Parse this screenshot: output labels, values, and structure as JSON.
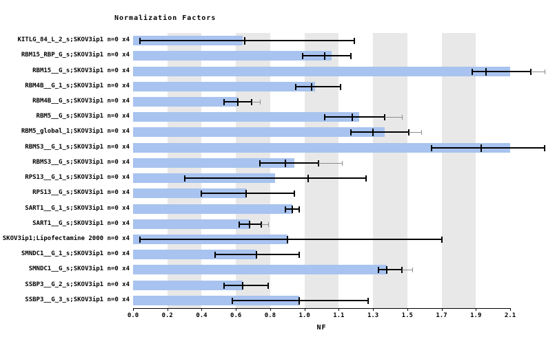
{
  "chart_data": {
    "type": "bar",
    "orientation": "horizontal",
    "title": "Normalization Factors",
    "xlabel": "NF",
    "xticks": [
      0.0,
      0.2,
      0.4,
      0.6,
      0.8,
      1.0,
      1.1,
      1.3,
      1.5,
      1.7,
      1.9,
      2.1
    ],
    "grid": "alternating-vertical-bands",
    "legend": "none",
    "bar_color": "#a8c3ef",
    "band_color": "#e8e8e8",
    "error_color": "#000000",
    "ext_color": "#8c8c8c",
    "rows": [
      {
        "label": "KITLG_84_L_2_s;SKOV3ip1 n=0 x4",
        "value": 0.64,
        "lo": 0.04,
        "hi": 1.19,
        "mid": 0.65
      },
      {
        "label": "RBM15_RBP_G_s;SKOV3ip1 n=0 x4",
        "value": 1.08,
        "lo": 0.99,
        "hi": 1.17,
        "mid": 1.06
      },
      {
        "label": "RBM15__G_s;SKOV3ip1 n=0 x4",
        "value": 2.1,
        "lo": 1.88,
        "hi": 2.22,
        "mid": 1.96,
        "ext_hi": 2.3
      },
      {
        "label": "RBM4B__G_1_s;SKOV3ip1 n=0 x4",
        "value": 1.03,
        "lo": 0.95,
        "hi": 1.11,
        "mid": 1.02
      },
      {
        "label": "RBM4B__G_s;SKOV3ip1 n=0 x4",
        "value": 0.61,
        "lo": 0.53,
        "hi": 0.69,
        "ext_hi": 0.74
      },
      {
        "label": "RBM5__G_s;SKOV3ip1 n=0 x4",
        "value": 1.22,
        "lo": 1.06,
        "hi": 1.37,
        "mid": 1.18,
        "ext_hi": 1.47
      },
      {
        "label": "RBM5_global_1;SKOV3ip1 n=0 x4",
        "value": 1.37,
        "lo": 1.17,
        "hi": 1.51,
        "mid": 1.3,
        "ext_hi": 1.58
      },
      {
        "label": "RBMS3__G_1_s;SKOV3ip1 n=0 x4",
        "value": 2.1,
        "lo": 1.64,
        "hi": 2.3,
        "mid": 1.93
      },
      {
        "label": "RBMS3__G_s;SKOV3ip1 n=0 x4",
        "value": 0.94,
        "lo": 0.74,
        "hi": 1.04,
        "mid": 0.89,
        "ext_hi": 1.12
      },
      {
        "label": "RPS13__G_1_s;SKOV3ip1 n=0 x4",
        "value": 0.83,
        "lo": 0.3,
        "hi": 1.26,
        "mid": 1.01
      },
      {
        "label": "RPS13__G_s;SKOV3ip1 n=0 x4",
        "value": 0.66,
        "lo": 0.4,
        "hi": 0.94
      },
      {
        "label": "SART1__G_1_s;SKOV3ip1 n=0 x4",
        "value": 0.93,
        "lo": 0.89,
        "hi": 0.97
      },
      {
        "label": "SART1__G_s;SKOV3ip1 n=0 x4",
        "value": 0.68,
        "lo": 0.62,
        "hi": 0.75,
        "ext_hi": 0.79
      },
      {
        "label": "SKOV3ip1;Lipofectamine 2000 n=0 x4",
        "value": 0.9,
        "lo": 0.04,
        "hi": 1.7
      },
      {
        "label": "SMNDC1__G_1_s;SKOV3ip1 n=0 x4",
        "value": 0.72,
        "lo": 0.48,
        "hi": 0.97
      },
      {
        "label": "SMNDC1__G_s;SKOV3ip1 n=0 x4",
        "value": 1.38,
        "lo": 1.33,
        "hi": 1.47,
        "ext_hi": 1.53
      },
      {
        "label": "SSBP3__G_2_s;SKOV3ip1 n=0 x4",
        "value": 0.64,
        "lo": 0.53,
        "hi": 0.79
      },
      {
        "label": "SSBP3__G_3_s;SKOV3ip1 n=0 x4",
        "value": 0.97,
        "lo": 0.58,
        "hi": 1.27
      }
    ]
  }
}
